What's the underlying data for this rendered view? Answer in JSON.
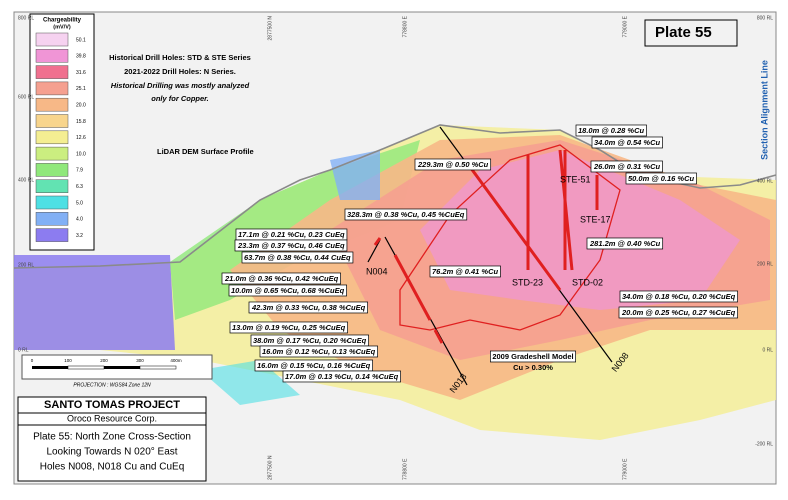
{
  "legend": {
    "title": [
      "Chargeability",
      "(mV/V)"
    ],
    "items": [
      {
        "label": "50.1",
        "color": "#f6d2f0"
      },
      {
        "label": "39.8",
        "color": "#f095d6"
      },
      {
        "label": "31.6",
        "color": "#f0708f"
      },
      {
        "label": "25.1",
        "color": "#f5a090"
      },
      {
        "label": "20.0",
        "color": "#f7b887"
      },
      {
        "label": "15.8",
        "color": "#f8d58c"
      },
      {
        "label": "12.6",
        "color": "#f4ee92"
      },
      {
        "label": "10.0",
        "color": "#cbee80"
      },
      {
        "label": "7.9",
        "color": "#90e87b"
      },
      {
        "label": "6.3",
        "color": "#62e3b2"
      },
      {
        "label": "5.0",
        "color": "#4ee0e4"
      },
      {
        "label": "4.0",
        "color": "#82b0f5"
      },
      {
        "label": "3.2",
        "color": "#8c7cf0"
      }
    ]
  },
  "notes": [
    "Historical Drill Holes: STD & STE Series",
    "2021-2022 Drill Holes: N Series.",
    "Historical Drilling was mostly analyzed",
    "only for Copper."
  ],
  "plate": "Plate 55",
  "alignment": "Section Alignment Line",
  "axes": {
    "left": [
      "800 RL",
      "600 RL",
      "400 RL",
      "200 RL",
      "0 RL"
    ],
    "right": [
      "800 RL",
      "400 RL",
      "200 RL",
      "0 RL",
      "-200 RL"
    ],
    "top": [
      "2877500 N",
      "778800 E",
      "779000 E"
    ],
    "bottom": [
      "2877500 N",
      "778800 E",
      "779000 E"
    ]
  },
  "lidar": "LiDAR DEM Surface Profile",
  "intercepts": [
    "229.3m @ 0.50 %Cu",
    "18.0m @ 0.28 %Cu",
    "34.0m @ 0.54 %Cu",
    "26.0m @ 0.31 %Cu",
    "50.0m @ 0.16 %Cu",
    "281.2m @ 0.40 %Cu",
    "328.3m @ 0.38 %Cu, 0.45 %CuEq",
    "17.1m @ 0.21 %Cu, 0.23 CuEq",
    "23.3m @ 0.37 %Cu, 0.46 CuEq",
    "63.7m @ 0.38 %Cu, 0.44 CuEq",
    "21.0m @ 0.36 %Cu, 0.42 %CuEq",
    "10.0m @ 0.65 %Cu, 0.68 %CuEq",
    "42.3m @ 0.33 %Cu, 0.38 %CuEq",
    "13.0m @ 0.19 %Cu, 0.25 %CuEq",
    "38.0m @ 0.17 %Cu, 0.20 %CuEq",
    "16.0m @ 0.12 %Cu, 0.13 %CuEq",
    "16.0m @ 0.15 %Cu, 0.16 %CuEq",
    "17.0m @ 0.13 %Cu, 0.14 %CuEq",
    "76.2m @ 0.41 %Cu",
    "34.0m @ 0.18 %Cu, 0.20 %CuEq",
    "20.0m @ 0.25 %Cu, 0.27 %CuEq"
  ],
  "holes": [
    "STE-51",
    "STE-17",
    "N004",
    "STD-23",
    "STD-02",
    "N008",
    "N018"
  ],
  "gradeshell": [
    "2009 Gradeshell Model",
    "Cu > 0.30%"
  ],
  "scale": {
    "ticks": [
      "0",
      "100",
      "200",
      "300",
      "400m"
    ],
    "projection": "PROJECTION : WGS84 Zone 12N"
  },
  "titleblock": [
    "SANTO TOMAS PROJECT",
    "Oroco Resource Corp.",
    "Plate 55: North Zone Cross-Section",
    "Looking Towards N 020° East",
    "Holes N008, N018 Cu and CuEq"
  ]
}
